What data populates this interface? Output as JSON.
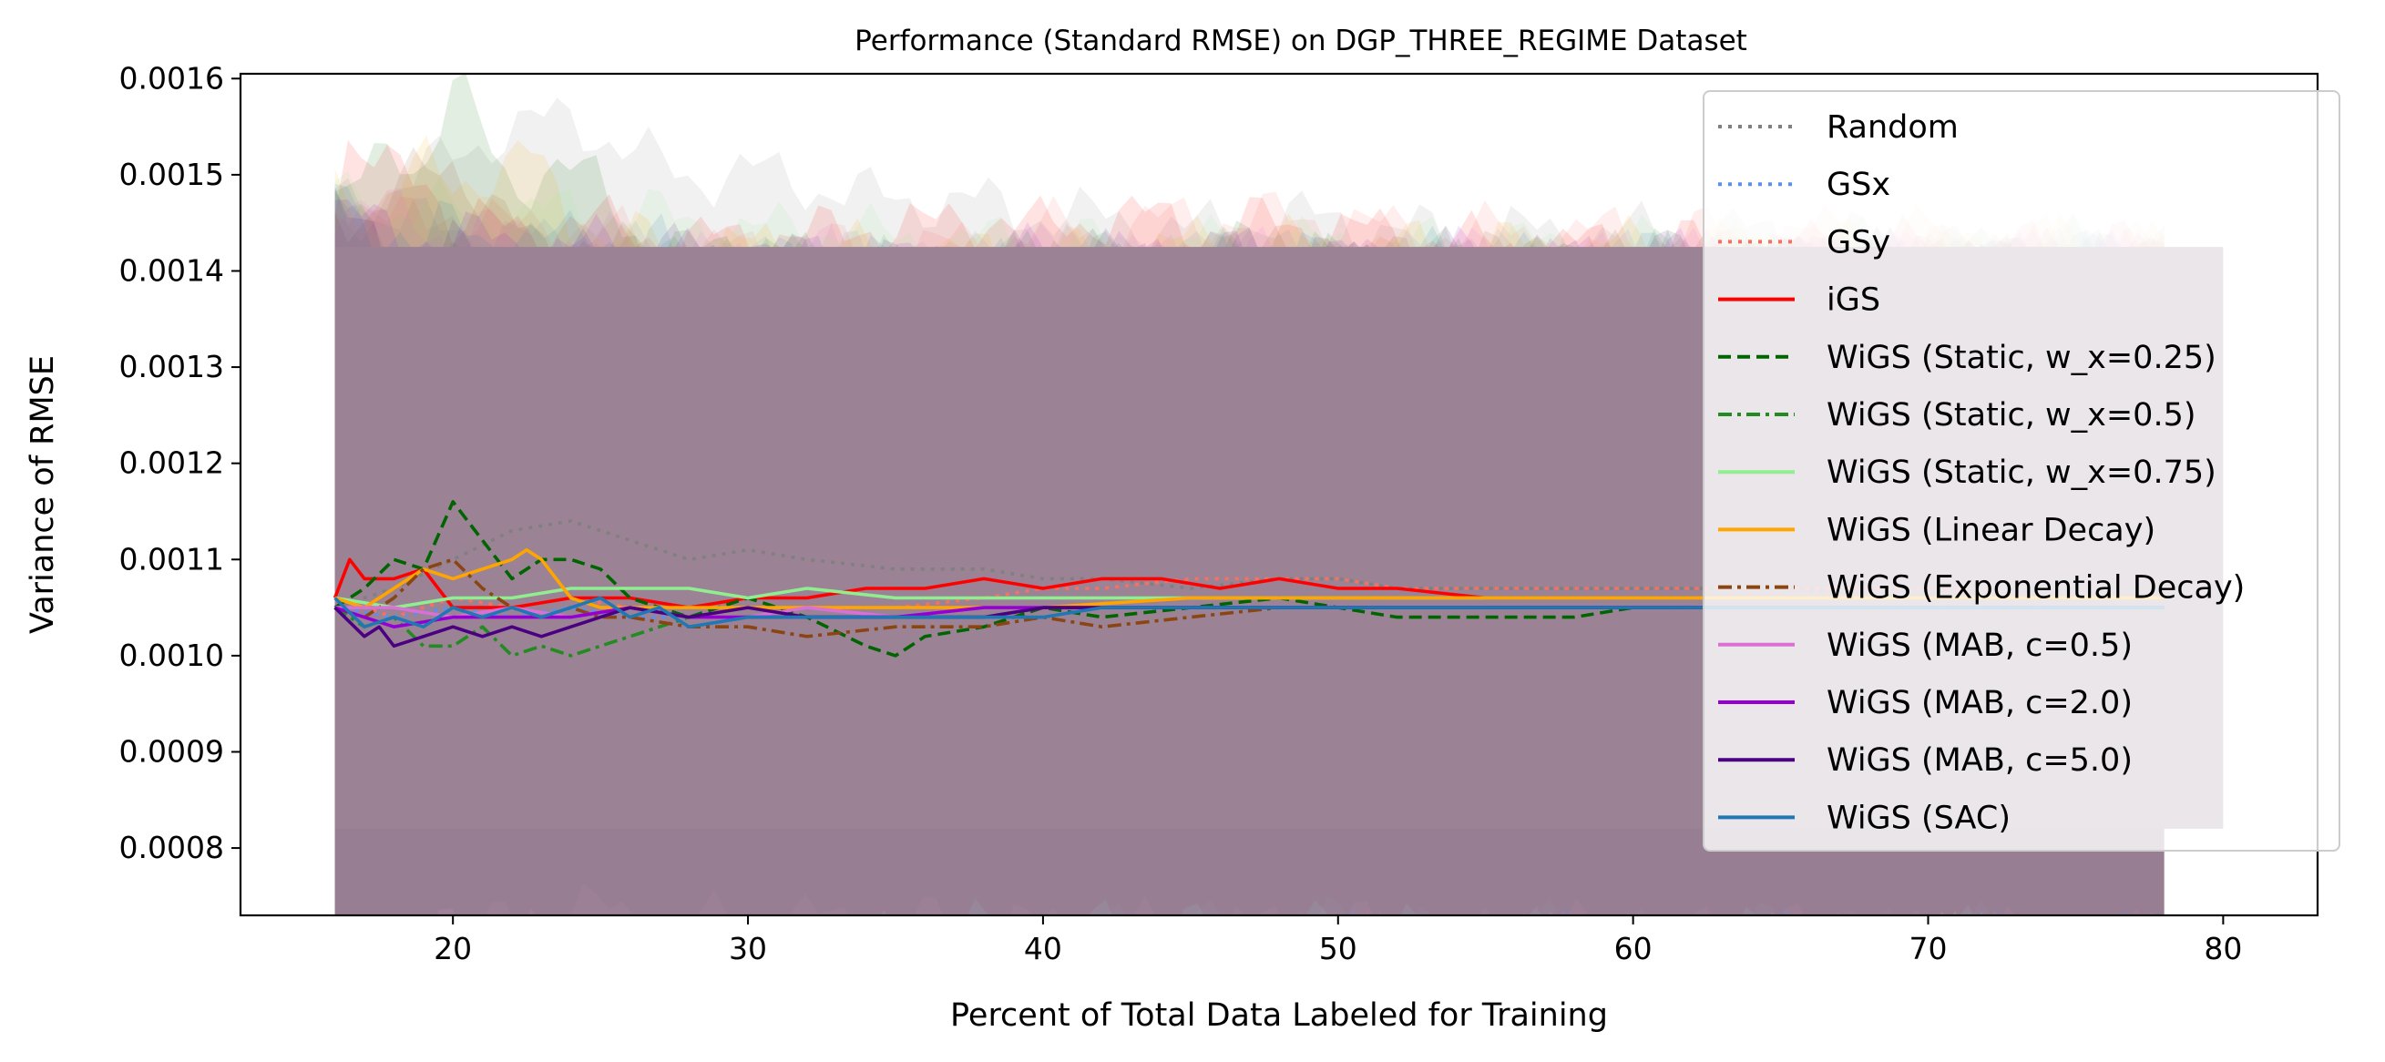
{
  "chart_data": {
    "type": "line",
    "title": "Performance (Standard RMSE) on DGP_THREE_REGIME Dataset",
    "xlabel": "Percent of Total Data Labeled for Training",
    "ylabel": "Variance of RMSE",
    "xlim": [
      12.8,
      83.2
    ],
    "ylim": [
      0.00073,
      0.001605
    ],
    "xticks": [
      20,
      30,
      40,
      50,
      60,
      70,
      80
    ],
    "xtick_labels": [
      "20",
      "30",
      "40",
      "50",
      "60",
      "70",
      "80"
    ],
    "yticks": [
      0.0008,
      0.0009,
      0.001,
      0.0011,
      0.0012,
      0.0013,
      0.0014,
      0.0015,
      0.0016
    ],
    "ytick_labels": [
      "0.0008",
      "0.0009",
      "0.0010",
      "0.0011",
      "0.0012",
      "0.0013",
      "0.0014",
      "0.0015",
      "0.0016"
    ],
    "legend_position": "upper-right",
    "shared_band": {
      "lower": 0.00082,
      "upper": 0.001425,
      "x_range": [
        16,
        80
      ],
      "color": "#9b8395"
    },
    "series": [
      {
        "name": "Random",
        "color": "#808080",
        "style": "dotted",
        "x": [
          16,
          18,
          20,
          22,
          24,
          26,
          28,
          30,
          32,
          35,
          38,
          40,
          42,
          45,
          48,
          50,
          52,
          55,
          58,
          60,
          65,
          70,
          75,
          78
        ],
        "y": [
          0.00105,
          0.00107,
          0.0011,
          0.00113,
          0.00114,
          0.00112,
          0.0011,
          0.00111,
          0.0011,
          0.00109,
          0.00109,
          0.00108,
          0.00108,
          0.00107,
          0.00108,
          0.00108,
          0.00107,
          0.00107,
          0.00107,
          0.00107,
          0.00107,
          0.00106,
          0.00106,
          0.00106
        ]
      },
      {
        "name": "GSx",
        "color": "#5b8ff0",
        "style": "dotted",
        "x": [
          16,
          18,
          20,
          22,
          24,
          26,
          28,
          30,
          32,
          35,
          38,
          40,
          42,
          45,
          48,
          50,
          52,
          55,
          58,
          60,
          65,
          70,
          75,
          78
        ],
        "y": [
          0.00105,
          0.00104,
          0.00105,
          0.00104,
          0.00105,
          0.00104,
          0.00104,
          0.00104,
          0.00105,
          0.00104,
          0.00105,
          0.00105,
          0.00105,
          0.00105,
          0.00105,
          0.00105,
          0.00105,
          0.00105,
          0.00105,
          0.00105,
          0.00105,
          0.00105,
          0.00105,
          0.00105
        ]
      },
      {
        "name": "GSy",
        "color": "#f87060",
        "style": "dotted",
        "x": [
          16,
          18,
          20,
          22,
          24,
          26,
          28,
          30,
          32,
          35,
          38,
          40,
          42,
          45,
          48,
          50,
          52,
          55,
          58,
          60,
          65,
          70,
          75,
          78
        ],
        "y": [
          0.00106,
          0.00104,
          0.00106,
          0.00105,
          0.00106,
          0.00105,
          0.00104,
          0.00105,
          0.00105,
          0.00105,
          0.00106,
          0.00107,
          0.00107,
          0.00108,
          0.00108,
          0.00108,
          0.00107,
          0.00107,
          0.00107,
          0.00107,
          0.00107,
          0.00107,
          0.00106,
          0.00106
        ]
      },
      {
        "name": "iGS",
        "color": "#ff0000",
        "style": "solid",
        "x": [
          16,
          16.5,
          17,
          18,
          19,
          20,
          22,
          24,
          26,
          28,
          30,
          32,
          34,
          36,
          38,
          40,
          42,
          44,
          46,
          48,
          50,
          52,
          55,
          58,
          60,
          65,
          70,
          75,
          78
        ],
        "y": [
          0.00106,
          0.0011,
          0.00108,
          0.00108,
          0.00109,
          0.00105,
          0.00105,
          0.00106,
          0.00106,
          0.00105,
          0.00106,
          0.00106,
          0.00107,
          0.00107,
          0.00108,
          0.00107,
          0.00108,
          0.00108,
          0.00107,
          0.00108,
          0.00107,
          0.00107,
          0.00106,
          0.00106,
          0.00106,
          0.00106,
          0.00106,
          0.00106,
          0.00106
        ]
      },
      {
        "name": "WiGS (Static, w_x=0.25)",
        "color": "#006400",
        "style": "dashed",
        "x": [
          16,
          17,
          18,
          19,
          20,
          21,
          22,
          23,
          24,
          25,
          26,
          28,
          30,
          32,
          34,
          35,
          36,
          38,
          40,
          42,
          45,
          48,
          50,
          52,
          55,
          58,
          60,
          65,
          70,
          75,
          78
        ],
        "y": [
          0.00105,
          0.00107,
          0.0011,
          0.00109,
          0.00116,
          0.00112,
          0.00108,
          0.0011,
          0.0011,
          0.00109,
          0.00106,
          0.00104,
          0.00106,
          0.00104,
          0.00101,
          0.001,
          0.00102,
          0.00103,
          0.00105,
          0.00104,
          0.00105,
          0.00106,
          0.00105,
          0.00104,
          0.00104,
          0.00104,
          0.00105,
          0.00105,
          0.00105,
          0.00105,
          0.00105
        ]
      },
      {
        "name": "WiGS (Static, w_x=0.5)",
        "color": "#228b22",
        "style": "dashdot",
        "x": [
          16,
          17,
          18,
          19,
          20,
          21,
          22,
          23,
          24,
          25,
          26,
          28,
          30,
          32,
          35,
          38,
          40,
          45,
          50,
          55,
          60,
          65,
          70,
          75,
          78
        ],
        "y": [
          0.00105,
          0.00103,
          0.00104,
          0.00101,
          0.00101,
          0.00103,
          0.001,
          0.00101,
          0.001,
          0.00101,
          0.00102,
          0.00104,
          0.00104,
          0.00104,
          0.00104,
          0.00104,
          0.00105,
          0.00105,
          0.00105,
          0.00105,
          0.00105,
          0.00105,
          0.00105,
          0.00105,
          0.00105
        ]
      },
      {
        "name": "WiGS (Static, w_x=0.75)",
        "color": "#90ee90",
        "style": "solid",
        "x": [
          16,
          18,
          20,
          22,
          24,
          26,
          28,
          30,
          32,
          35,
          38,
          40,
          45,
          50,
          55,
          60,
          65,
          70,
          75,
          78
        ],
        "y": [
          0.00106,
          0.00105,
          0.00106,
          0.00106,
          0.00107,
          0.00107,
          0.00107,
          0.00106,
          0.00107,
          0.00106,
          0.00106,
          0.00106,
          0.00106,
          0.00106,
          0.00106,
          0.00106,
          0.00106,
          0.00106,
          0.00106,
          0.00106
        ]
      },
      {
        "name": "WiGS (Linear Decay)",
        "color": "#ffa500",
        "style": "solid",
        "x": [
          16,
          17,
          18,
          19,
          20,
          21,
          22,
          22.5,
          23,
          23.5,
          24,
          25,
          26,
          28,
          30,
          32,
          35,
          38,
          40,
          45,
          50,
          55,
          60,
          65,
          70,
          75,
          78
        ],
        "y": [
          0.00106,
          0.00105,
          0.00107,
          0.00109,
          0.00108,
          0.00109,
          0.0011,
          0.00111,
          0.0011,
          0.00108,
          0.00106,
          0.00105,
          0.00105,
          0.00105,
          0.00105,
          0.00105,
          0.00105,
          0.00105,
          0.00105,
          0.00106,
          0.00106,
          0.00106,
          0.00106,
          0.00106,
          0.00106,
          0.00106,
          0.00106
        ]
      },
      {
        "name": "WiGS (Exponential Decay)",
        "color": "#8b4513",
        "style": "dashdot",
        "x": [
          16,
          17,
          18,
          19,
          20,
          21,
          22,
          23,
          24,
          25,
          26,
          28,
          30,
          32,
          35,
          38,
          40,
          42,
          45,
          48,
          50,
          52,
          55,
          58,
          60,
          65,
          70,
          75,
          78
        ],
        "y": [
          0.00105,
          0.00104,
          0.00106,
          0.00109,
          0.0011,
          0.00107,
          0.00105,
          0.00104,
          0.00105,
          0.00104,
          0.00104,
          0.00103,
          0.00103,
          0.00102,
          0.00103,
          0.00103,
          0.00104,
          0.00103,
          0.00104,
          0.00105,
          0.00105,
          0.00105,
          0.00105,
          0.00105,
          0.00105,
          0.00105,
          0.00105,
          0.00105,
          0.00105
        ]
      },
      {
        "name": "WiGS (MAB, c=0.5)",
        "color": "#da70d6",
        "style": "solid",
        "x": [
          16,
          18,
          20,
          22,
          24,
          26,
          28,
          30,
          32,
          35,
          38,
          40,
          45,
          50,
          55,
          60,
          65,
          70,
          75,
          78
        ],
        "y": [
          0.00105,
          0.00105,
          0.00104,
          0.00105,
          0.00104,
          0.00105,
          0.00104,
          0.00104,
          0.00105,
          0.00104,
          0.00105,
          0.00105,
          0.00105,
          0.00105,
          0.00105,
          0.00105,
          0.00105,
          0.00105,
          0.00105,
          0.00105
        ]
      },
      {
        "name": "WiGS (MAB, c=2.0)",
        "color": "#9400d3",
        "style": "solid",
        "x": [
          16,
          18,
          20,
          22,
          24,
          26,
          28,
          30,
          32,
          35,
          38,
          40,
          45,
          50,
          55,
          60,
          65,
          70,
          75,
          78
        ],
        "y": [
          0.00105,
          0.00103,
          0.00104,
          0.00104,
          0.00104,
          0.00105,
          0.00104,
          0.00104,
          0.00104,
          0.00104,
          0.00105,
          0.00105,
          0.00105,
          0.00105,
          0.00105,
          0.00105,
          0.00105,
          0.00105,
          0.00105,
          0.00105
        ]
      },
      {
        "name": "WiGS (MAB, c=5.0)",
        "color": "#4b0082",
        "style": "solid",
        "x": [
          16,
          17,
          17.5,
          18,
          19,
          20,
          21,
          22,
          23,
          24,
          25,
          26,
          28,
          30,
          32,
          35,
          38,
          40,
          42,
          45,
          48,
          50,
          55,
          60,
          65,
          70,
          75,
          78
        ],
        "y": [
          0.00105,
          0.00102,
          0.00103,
          0.00101,
          0.00102,
          0.00103,
          0.00102,
          0.00103,
          0.00102,
          0.00103,
          0.00104,
          0.00105,
          0.00104,
          0.00105,
          0.00104,
          0.00104,
          0.00104,
          0.00105,
          0.00105,
          0.00105,
          0.00105,
          0.00105,
          0.00105,
          0.00105,
          0.00105,
          0.00105,
          0.00105,
          0.00105
        ]
      },
      {
        "name": "WiGS (SAC)",
        "color": "#1f77b4",
        "style": "solid",
        "x": [
          16,
          17,
          18,
          19,
          20,
          21,
          22,
          23,
          24,
          25,
          26,
          27,
          28,
          30,
          32,
          34,
          36,
          38,
          40,
          42,
          45,
          48,
          50,
          55,
          60,
          65,
          70,
          75,
          78
        ],
        "y": [
          0.00106,
          0.00103,
          0.00104,
          0.00103,
          0.00105,
          0.00104,
          0.00105,
          0.00104,
          0.00105,
          0.00106,
          0.00104,
          0.00105,
          0.00103,
          0.00104,
          0.00104,
          0.00104,
          0.00104,
          0.00104,
          0.00104,
          0.00105,
          0.00105,
          0.00105,
          0.00105,
          0.00105,
          0.00105,
          0.00105,
          0.00105,
          0.00105,
          0.00105
        ]
      }
    ]
  }
}
